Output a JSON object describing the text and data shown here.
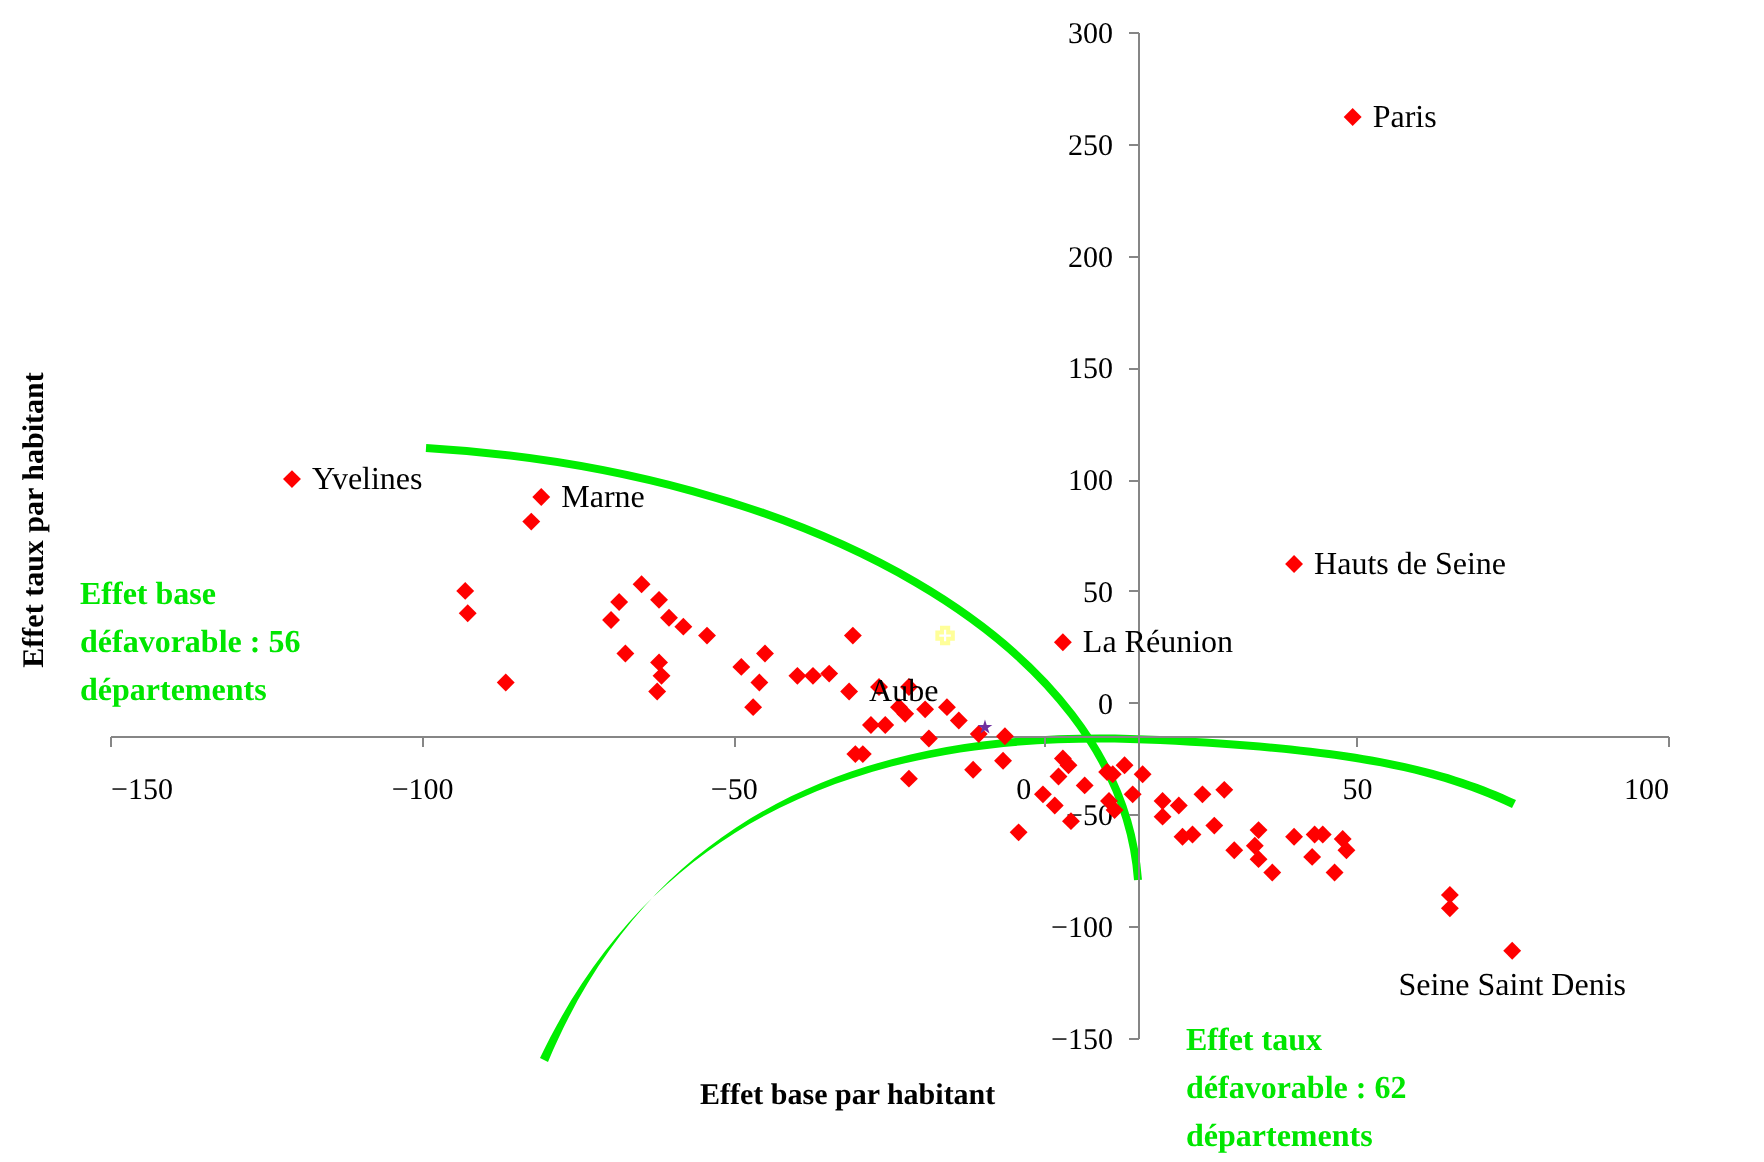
{
  "chart_data": {
    "type": "scatter",
    "xlabel": "Effet base par habitant",
    "ylabel": "Effet taux par habitant",
    "xlim": [
      -150,
      100
    ],
    "xticks": [
      -150,
      -100,
      -50,
      0,
      50,
      100
    ],
    "ylim": [
      -150,
      300
    ],
    "yticks": [
      -150,
      -100,
      -50,
      0,
      50,
      100,
      150,
      200,
      250,
      300
    ],
    "grid": false,
    "series": [
      {
        "color": "#ff0000",
        "marker": "diamond",
        "x": [
          49.4,
          40,
          2.9,
          -120.8,
          -80.8,
          -82.4,
          75,
          -93,
          -92.6,
          -86.5,
          -64.7,
          -61.9,
          -68.3,
          -69.6,
          -60.3,
          -58,
          -54.2,
          -67.3,
          -61.9,
          -61.5,
          -62.2,
          -48.7,
          -44.9,
          -45.8,
          -46.8,
          -39.7,
          -37.2,
          -34.6,
          -30.8,
          -31.4,
          -30.4,
          -26.6,
          -27.9,
          -25.6,
          -23.4,
          -21.8,
          -22.4,
          -19.2,
          -29.2,
          -18.6,
          -21.8,
          -15.7,
          -13.8,
          -10.6,
          -6.4,
          -6.7,
          -11.5,
          -4.2,
          2.9,
          3.8,
          2.2,
          -0.3,
          1.6,
          4.2,
          6.4,
          10.9,
          12.8,
          15.7,
          14.1,
          10.3,
          11.2,
          18.9,
          18.9,
          21.5,
          25.3,
          28.8,
          27.2,
          22.1,
          23.7,
          30.4,
          34.3,
          33.7,
          34.3,
          36.5,
          40,
          43.3,
          47.8,
          48.4,
          46.5,
          42.9,
          44.6,
          10,
          65,
          65
        ],
        "values": [
          262,
          62,
          27,
          100,
          92,
          81,
          -111,
          50,
          40,
          9,
          53,
          46,
          45,
          37,
          38,
          34,
          30,
          22,
          18,
          12,
          5,
          16,
          22,
          9,
          -2,
          12,
          12,
          13,
          30,
          5,
          -23,
          7,
          -10,
          -10,
          -2,
          7,
          -5,
          -3,
          -23,
          -16,
          -34,
          -2,
          -8,
          -14,
          -15,
          -26,
          -30,
          -58,
          -25,
          -28,
          -33,
          -41,
          -46,
          -53,
          -37,
          -32,
          -28,
          -32,
          -41,
          -44,
          -48,
          -44,
          -51,
          -46,
          -41,
          -39,
          -55,
          -60,
          -59,
          -66,
          -57,
          -64,
          -70,
          -76,
          -60,
          -59,
          -61,
          -66,
          -76,
          -69,
          -59,
          -31,
          -86,
          -92
        ]
      },
      {
        "color": "#ffff99",
        "marker": "cross",
        "x": [
          -16
        ],
        "values": [
          30
        ]
      },
      {
        "color": "#7030a0",
        "marker": "star",
        "x": [
          -9.6
        ],
        "values": [
          -11
        ]
      }
    ],
    "annotations": [
      {
        "text": "Paris",
        "x": 49.4,
        "y": 262
      },
      {
        "text": "Hauts de Seine",
        "x": 40,
        "y": 62
      },
      {
        "text": "La Réunion",
        "x": 2.9,
        "y": 27
      },
      {
        "text": "Yvelines",
        "x": -120.8,
        "y": 100
      },
      {
        "text": "Marne",
        "x": -80.8,
        "y": 92
      },
      {
        "text": "Aube",
        "x": -31.4,
        "y": 5
      },
      {
        "text": "Seine Saint Denis",
        "x": 75,
        "y": -111
      },
      "Effet base défavorable : 56 départements",
      "Effet taux défavorable : 62 départements"
    ]
  }
}
